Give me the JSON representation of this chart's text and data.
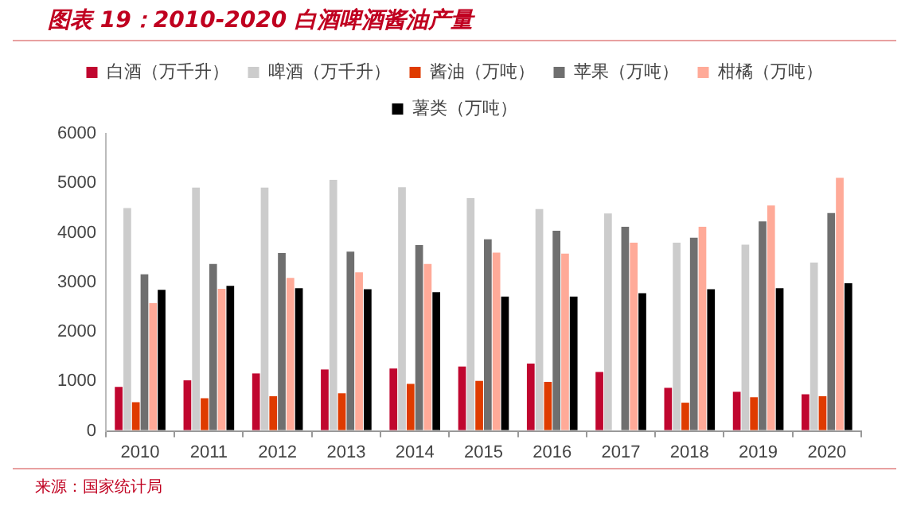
{
  "chart_data": {
    "type": "bar",
    "title": "图表 19：2010-2020 白酒啤酒酱油产量",
    "categories": [
      "2010",
      "2011",
      "2012",
      "2013",
      "2014",
      "2015",
      "2016",
      "2017",
      "2018",
      "2019",
      "2020"
    ],
    "series": [
      {
        "name": "白酒（万千升）",
        "color": "#c0062f",
        "values": [
          890,
          1020,
          1160,
          1240,
          1260,
          1300,
          1360,
          1190,
          870,
          790,
          740
        ]
      },
      {
        "name": "啤酒（万千升）",
        "color": "#cccccc",
        "values": [
          4500,
          4910,
          4910,
          5070,
          4920,
          4700,
          4480,
          4390,
          3800,
          3760,
          3400
        ]
      },
      {
        "name": "酱油（万吨）",
        "color": "#df3b00",
        "values": [
          580,
          660,
          700,
          760,
          950,
          1010,
          990,
          null,
          570,
          680,
          700
        ]
      },
      {
        "name": "苹果（万吨）",
        "color": "#6f6f6f",
        "values": [
          3160,
          3370,
          3590,
          3620,
          3750,
          3870,
          4040,
          4120,
          3900,
          4230,
          4400
        ]
      },
      {
        "name": "柑橘（万吨）",
        "color": "#ffaa98",
        "values": [
          2580,
          2870,
          3090,
          3200,
          3370,
          3600,
          3580,
          3800,
          4120,
          4550,
          5110
        ]
      },
      {
        "name": "薯类（万吨）",
        "color": "#000000",
        "values": [
          2850,
          2930,
          2880,
          2860,
          2800,
          2710,
          2710,
          2780,
          2860,
          2880,
          2980
        ]
      }
    ],
    "ylim": [
      0,
      6000
    ],
    "yticks": [
      0,
      1000,
      2000,
      3000,
      4000,
      5000,
      6000
    ],
    "grid": false,
    "legend": "top",
    "annotations": [
      "来源：国家统计局"
    ]
  }
}
